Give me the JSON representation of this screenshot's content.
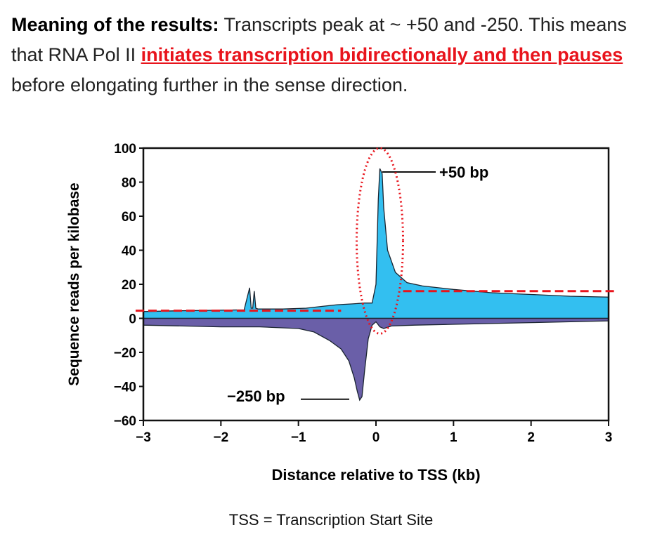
{
  "caption": {
    "bold_lead": "Meaning of the results:",
    "text1": " Transcripts peak at ~ +50 and -250. This means that RNA Pol II ",
    "highlight": "initiates transcription bidirectionally and then pauses",
    "text2": " before elongating further in the sense direction."
  },
  "footer": "TSS = Transcription Start Site",
  "colors": {
    "sense": "#33bff0",
    "antisense": "#6a5fa8",
    "annotation": "#e8141c"
  },
  "chart_data": {
    "type": "area",
    "title": "",
    "xlabel": "Distance relative to TSS (kb)",
    "ylabel": "Sequence reads per kilobase",
    "xlim": [
      -3,
      3
    ],
    "ylim": [
      -60,
      100
    ],
    "xticks": [
      "−3",
      "−2",
      "−1",
      "0",
      "1",
      "2",
      "3"
    ],
    "yticks": [
      "100",
      "80",
      "60",
      "40",
      "20",
      "0",
      "−20",
      "−40",
      "−60"
    ],
    "grid": false,
    "series": [
      {
        "x": [
          -3,
          -2.5,
          -2,
          -1.7,
          -1.63,
          -1.61,
          -1.59,
          -1.57,
          -1.55,
          -1.52,
          -1.2,
          -0.9,
          -0.7,
          -0.5,
          -0.3,
          -0.15,
          -0.05,
          0,
          0.03,
          0.05,
          0.08,
          0.1,
          0.15,
          0.25,
          0.4,
          0.6,
          1,
          1.5,
          2,
          2.5,
          3
        ],
        "y": [
          4,
          4.5,
          4.8,
          5,
          18,
          6,
          6,
          16,
          6,
          5.5,
          5.5,
          6,
          7,
          8,
          8.5,
          9,
          9,
          20,
          70,
          88,
          85,
          65,
          40,
          27,
          21,
          19,
          17,
          15,
          14,
          13,
          12.5
        ]
      },
      {
        "x": [
          -3,
          -2.5,
          -2,
          -1.5,
          -1,
          -0.8,
          -0.6,
          -0.45,
          -0.35,
          -0.28,
          -0.24,
          -0.21,
          -0.18,
          -0.15,
          -0.1,
          -0.05,
          0,
          0.05,
          0.1,
          0.2,
          0.5,
          1,
          2,
          3
        ],
        "y": [
          -4,
          -4.5,
          -5,
          -5,
          -6,
          -8,
          -13,
          -18,
          -25,
          -35,
          -43,
          -48,
          -46,
          -32,
          -12,
          -4,
          -2,
          -5,
          -6,
          -4.5,
          -4,
          -3.5,
          -2.5,
          -1.5
        ]
      }
    ],
    "annotations": [
      {
        "text": "+50 bp",
        "x": 0.05,
        "y": 88
      },
      {
        "text": "−250 bp",
        "x": -0.25,
        "y": -47
      },
      {
        "type": "dashed-line",
        "x": [
          -3.1,
          -0.45
        ],
        "y": 4.5
      },
      {
        "type": "dashed-line",
        "x": [
          0.35,
          3.1
        ],
        "y": 16
      },
      {
        "type": "dotted-ellipse",
        "x_center": 0.05,
        "y_range": [
          -9,
          100
        ]
      }
    ]
  }
}
